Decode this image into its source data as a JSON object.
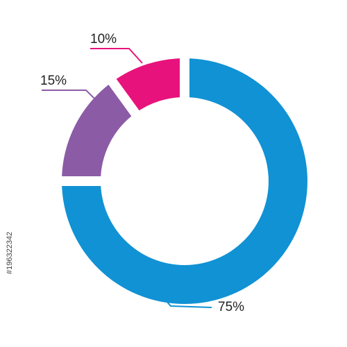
{
  "chart_data": {
    "type": "donut",
    "values": [
      75,
      15,
      10
    ],
    "value_labels": [
      "75%",
      "15%",
      "10%"
    ],
    "colors": [
      "#1192d4",
      "#8c5ba6",
      "#e8127c"
    ],
    "watermark": "#196322342"
  }
}
